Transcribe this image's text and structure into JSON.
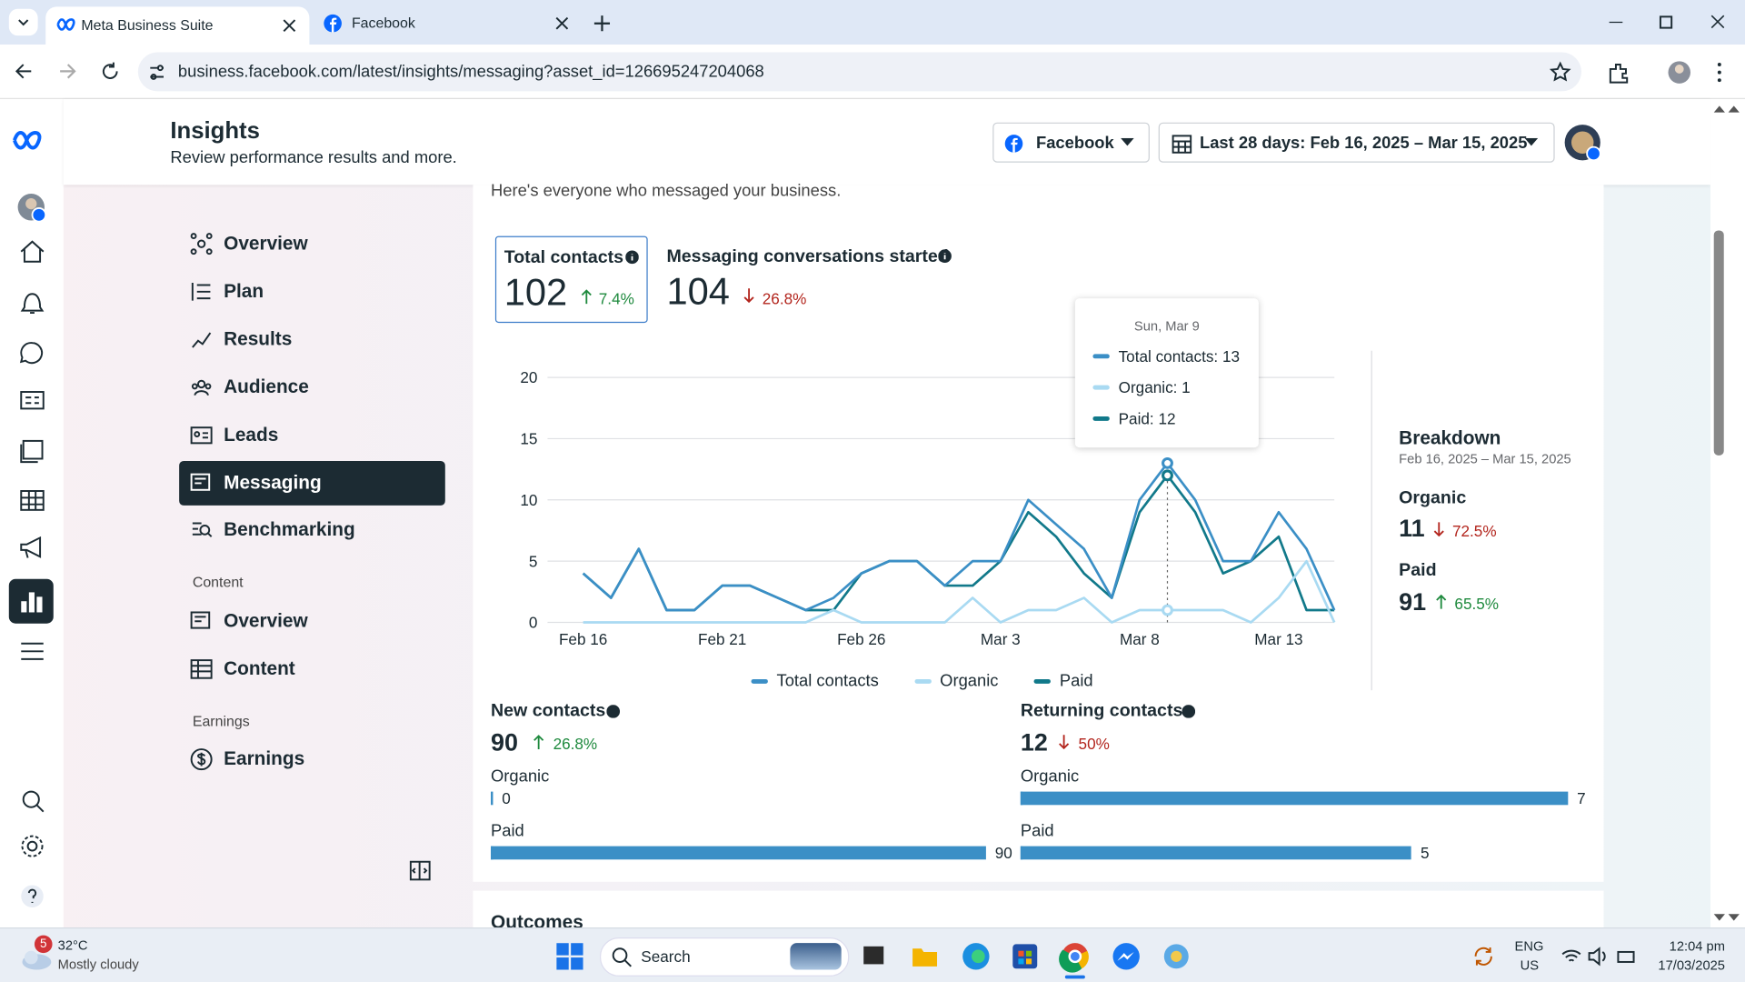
{
  "browser": {
    "tabs": [
      "Meta Business Suite",
      "Facebook"
    ],
    "url": "business.facebook.com/latest/insights/messaging?asset_id=126695247204068"
  },
  "header": {
    "title": "Insights",
    "subtitle": "Review performance results and more.",
    "platform": "Facebook",
    "date_range": "Last 28 days: Feb 16, 2025 – Mar 15, 2025"
  },
  "nav": {
    "items": [
      "Overview",
      "Plan",
      "Results",
      "Audience",
      "Leads",
      "Messaging",
      "Benchmarking"
    ],
    "content_heading": "Content",
    "content_items": [
      "Overview",
      "Content"
    ],
    "earnings_heading": "Earnings",
    "earnings_items": [
      "Earnings"
    ]
  },
  "intro": "Here's everyone who messaged your business.",
  "metrics": [
    {
      "label": "Total contacts",
      "value": 102,
      "change": "7.4%"
    },
    {
      "label": "Messaging conversations started",
      "value": 104,
      "change": "26.8%"
    }
  ],
  "chart_data": {
    "type": "line",
    "categories": [
      "Feb 16",
      null,
      null,
      null,
      null,
      "Feb 21",
      null,
      null,
      null,
      null,
      "Feb 26",
      null,
      null,
      null,
      null,
      "Mar 3",
      null,
      null,
      null,
      null,
      "Mar 8",
      null,
      null,
      null,
      null,
      "Mar 13",
      null,
      null
    ],
    "series": [
      {
        "name": "Total contacts",
        "color": "#3b8fc6",
        "values": [
          4,
          2,
          6,
          1,
          1,
          3,
          3,
          2,
          1,
          2,
          4,
          5,
          5,
          3,
          5,
          5,
          10,
          8,
          6,
          2,
          10,
          13,
          10,
          5,
          5,
          9,
          6,
          1
        ]
      },
      {
        "name": "Organic",
        "color": "#a9daf2",
        "values": [
          0,
          0,
          0,
          0,
          0,
          0,
          0,
          0,
          0,
          1,
          0,
          0,
          0,
          0,
          2,
          0,
          1,
          1,
          2,
          0,
          1,
          1,
          1,
          1,
          0,
          2,
          5,
          0
        ]
      },
      {
        "name": "Paid",
        "color": "#11798a",
        "values": [
          4,
          2,
          6,
          1,
          1,
          3,
          3,
          2,
          1,
          1,
          4,
          5,
          5,
          3,
          3,
          5,
          9,
          7,
          4,
          2,
          9,
          12,
          9,
          4,
          5,
          7,
          1,
          1
        ]
      }
    ],
    "ylim": [
      0,
      20
    ],
    "yticks": [
      0,
      5,
      10,
      15,
      20
    ],
    "grid": true
  },
  "tooltip": {
    "date": "Sun, Mar 9",
    "lines": [
      "Total contacts: 13",
      "Organic: 1",
      "Paid: 12"
    ]
  },
  "breakdown": {
    "title": "Breakdown",
    "range": "Feb 16, 2025 – Mar 15, 2025",
    "items": [
      {
        "label": "Organic",
        "value": 11,
        "change": "72.5%"
      },
      {
        "label": "Paid",
        "value": 91,
        "change": "65.5%"
      }
    ]
  },
  "contacts": [
    {
      "label": "New contacts",
      "value": 90,
      "change": "26.8%",
      "bars": [
        {
          "label": "Organic",
          "value": 0
        },
        {
          "label": "Paid",
          "value": 90
        }
      ]
    },
    {
      "label": "Returning contacts",
      "value": 12,
      "change": "50%",
      "bars": [
        {
          "label": "Organic",
          "value": 7
        },
        {
          "label": "Paid",
          "value": 5
        }
      ]
    }
  ],
  "outcomes": "Outcomes",
  "taskbar": {
    "badge": 5,
    "temperature": "32°C",
    "weather": "Mostly cloudy",
    "search": "Search",
    "language": "ENG",
    "region": "US",
    "time": "12:04 pm",
    "date": "17/03/2025"
  }
}
